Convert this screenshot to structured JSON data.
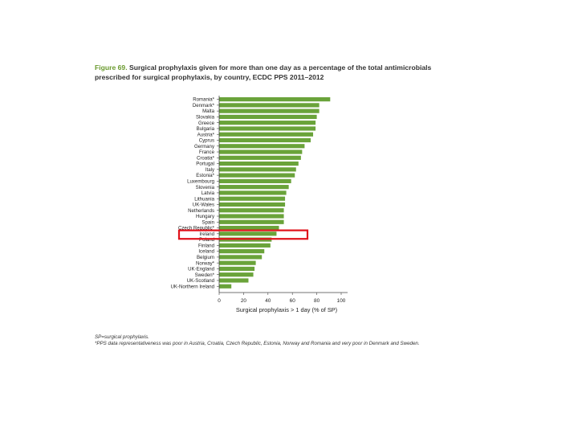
{
  "figure": {
    "label": "Figure 69.",
    "title": "Surgical prophylaxis given for more than one day as a percentage of the total antimicrobials prescribed for surgical prophylaxis, by country, ECDC PPS 2011–2012"
  },
  "footnotes": [
    "SP=surgical prophylaxis.",
    "*PPS data representativeness was poor in Austria, Croatia, Czech Republic, Estonia, Norway and Romania and very poor in Denmark and Sweden."
  ],
  "colors": {
    "bar": "#6aa33a",
    "highlight": "#e0121b"
  },
  "highlighted_category": "Ireland",
  "chart_data": {
    "type": "bar",
    "orientation": "horizontal",
    "categories": [
      "Romania*",
      "Denmark*",
      "Malta",
      "Slovakia",
      "Greece",
      "Bulgaria",
      "Austria*",
      "Cyprus",
      "Germany",
      "France",
      "Croatia*",
      "Portugal",
      "Italy",
      "Estonia*",
      "Luxembourg",
      "Slovenia",
      "Latvia",
      "Lithuania",
      "UK-Wales",
      "Netherlands",
      "Hungary",
      "Spain",
      "Czech Republic*",
      "Ireland",
      "Poland",
      "Finland",
      "Iceland",
      "Belgium",
      "Norway*",
      "UK-England",
      "Sweden*",
      "UK-Scotland",
      "UK-Northern Ireland"
    ],
    "values": [
      91,
      82,
      82,
      80,
      79,
      79,
      77,
      75,
      70,
      68,
      67,
      65,
      63,
      62,
      59,
      57,
      55,
      54,
      54,
      53,
      53,
      53,
      49,
      47,
      43,
      42,
      37,
      35,
      30,
      29,
      28,
      24,
      10
    ],
    "xlabel": "Surgical prophylaxis > 1 day (% of SP)",
    "xlim": [
      0,
      100
    ],
    "xticks": [
      "0",
      "20",
      "40",
      "60",
      "80",
      "100"
    ]
  }
}
